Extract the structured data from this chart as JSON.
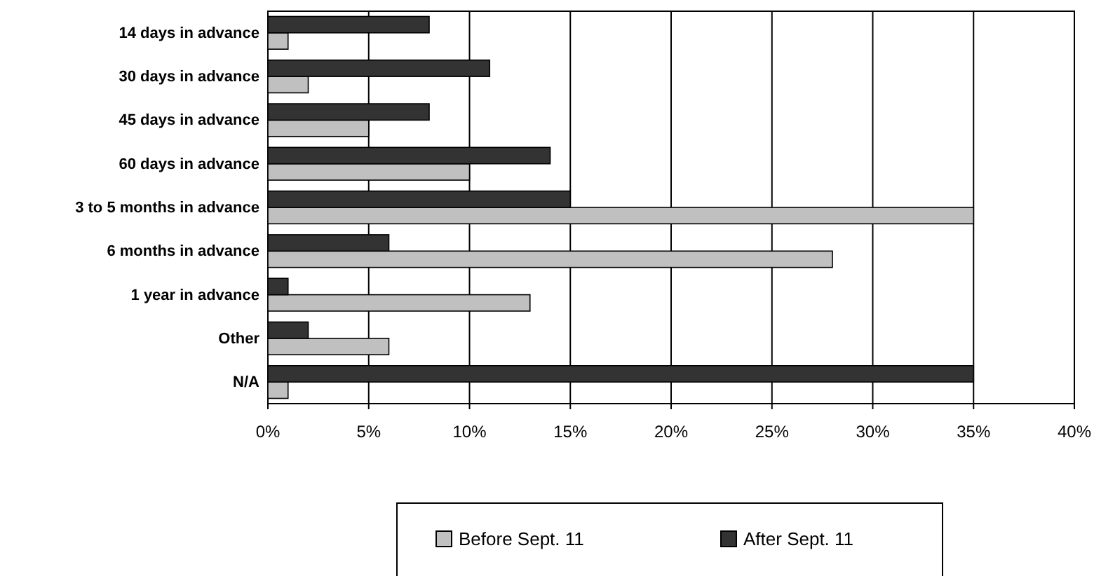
{
  "chart_data": {
    "type": "bar",
    "orientation": "horizontal",
    "categories": [
      "14 days in advance",
      "30 days in advance",
      "45 days in advance",
      "60 days in advance",
      "3 to 5 months in advance",
      "6 months in advance",
      "1 year in advance",
      "Other",
      "N/A"
    ],
    "series": [
      {
        "name": "Before Sept. 11",
        "color": "#c0c0c0",
        "values": [
          1,
          2,
          5,
          10,
          35,
          28,
          13,
          6,
          1
        ]
      },
      {
        "name": "After Sept. 11",
        "color": "#333333",
        "values": [
          8,
          11,
          8,
          14,
          15,
          6,
          1,
          2,
          35
        ]
      }
    ],
    "xlim": [
      0,
      40
    ],
    "xticks": [
      {
        "value": 0,
        "label": "0%"
      },
      {
        "value": 5,
        "label": "5%"
      },
      {
        "value": 10,
        "label": "10%"
      },
      {
        "value": 15,
        "label": "15%"
      },
      {
        "value": 20,
        "label": "20%"
      },
      {
        "value": 25,
        "label": "25%"
      },
      {
        "value": 30,
        "label": "30%"
      },
      {
        "value": 35,
        "label": "35%"
      },
      {
        "value": 40,
        "label": "40%"
      }
    ],
    "grid": "x",
    "legend": "bottom"
  }
}
